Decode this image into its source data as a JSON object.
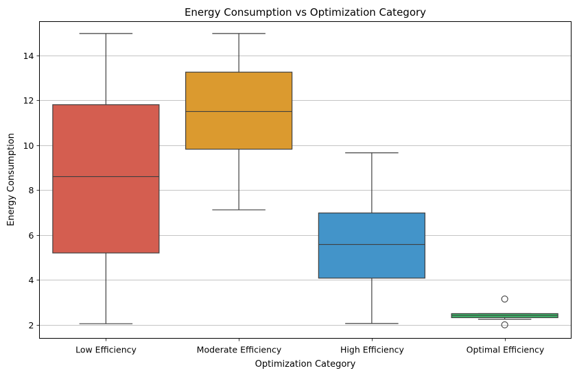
{
  "chart_data": {
    "type": "box",
    "title": "Energy Consumption vs Optimization Category",
    "xlabel": "Optimization Category",
    "ylabel": "Energy Consumption",
    "ylim": [
      1.4,
      15.5
    ],
    "yticks": [
      2,
      4,
      6,
      8,
      10,
      12,
      14
    ],
    "grid": "y",
    "categories": [
      "Low Efficiency",
      "Moderate Efficiency",
      "High Efficiency",
      "Optimal Efficiency"
    ],
    "boxes": [
      {
        "category": "Low Efficiency",
        "whisker_low": 2.05,
        "q1": 5.2,
        "median": 8.6,
        "q3": 11.8,
        "whisker_high": 14.97,
        "outliers": [],
        "color": "#d45e50"
      },
      {
        "category": "Moderate Efficiency",
        "whisker_low": 7.12,
        "q1": 9.82,
        "median": 11.5,
        "q3": 13.25,
        "whisker_high": 14.97,
        "outliers": [],
        "color": "#db9a2f"
      },
      {
        "category": "High Efficiency",
        "whisker_low": 2.06,
        "q1": 4.08,
        "median": 5.58,
        "q3": 6.98,
        "whisker_high": 9.66,
        "outliers": [],
        "color": "#4394c9"
      },
      {
        "category": "Optimal Efficiency",
        "whisker_low": 2.25,
        "q1": 2.32,
        "median": 2.42,
        "q3": 2.5,
        "whisker_high": 2.5,
        "outliers": [
          3.15,
          2.0
        ],
        "color": "#3fb86b"
      }
    ]
  }
}
